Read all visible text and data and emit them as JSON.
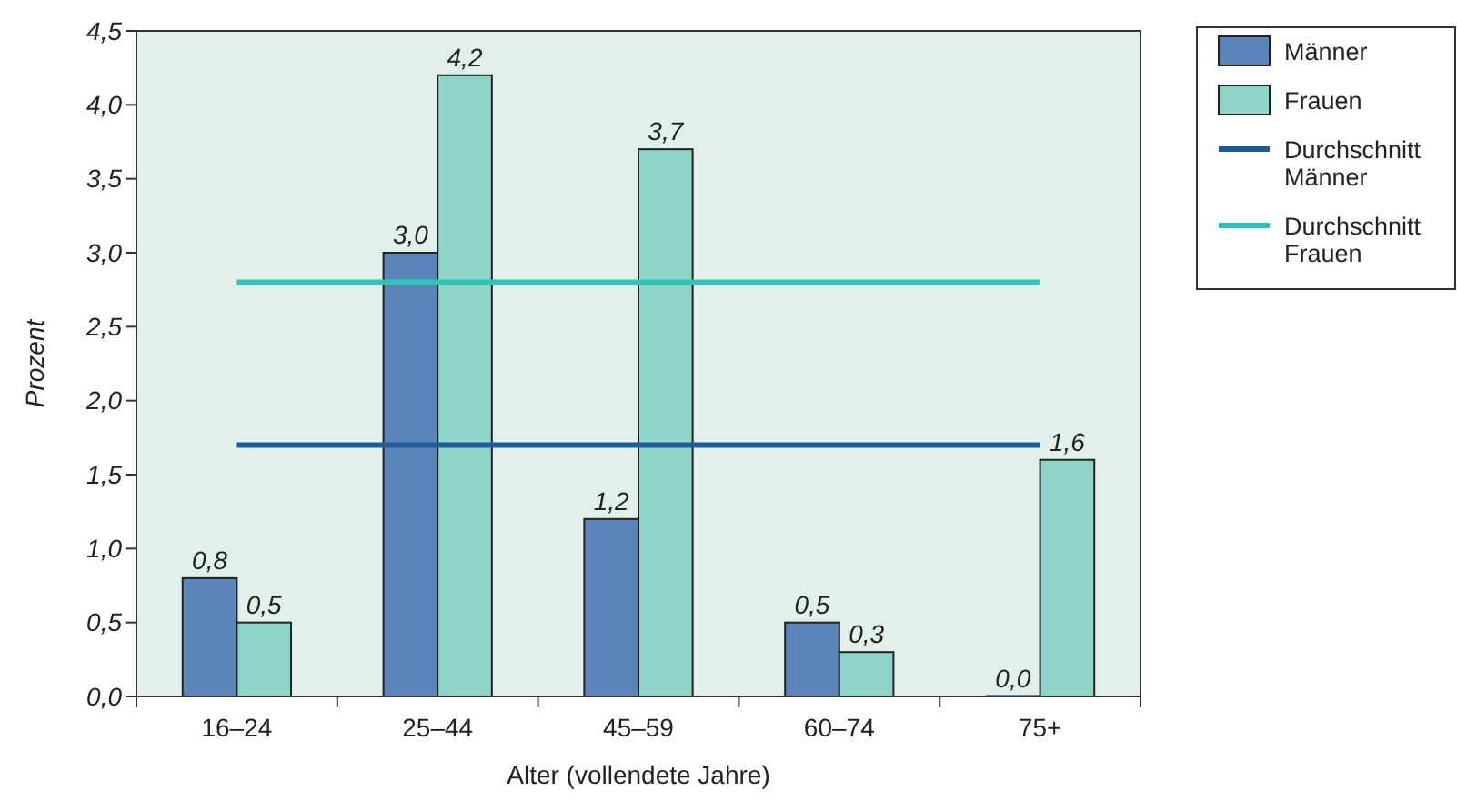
{
  "chart_data": {
    "type": "bar",
    "xlabel": "Alter (vollendete Jahre)",
    "ylabel": "Prozent",
    "categories": [
      "16–24",
      "25–44",
      "45–59",
      "60–74",
      "75+"
    ],
    "series": [
      {
        "name": "Männer",
        "color": "#5b84bb",
        "values": [
          0.8,
          3.0,
          1.2,
          0.5,
          0.0
        ],
        "value_labels": [
          "0,8",
          "3,0",
          "1,2",
          "0,5",
          "0,0"
        ]
      },
      {
        "name": "Frauen",
        "color": "#8fd4c8",
        "values": [
          0.5,
          4.2,
          3.7,
          0.3,
          1.6
        ],
        "value_labels": [
          "0,5",
          "4,2",
          "3,7",
          "0,3",
          "1,6"
        ]
      },
      {
        "name": "Durchschnitt Männer",
        "type": "line",
        "color": "#1f5a99",
        "values": [
          1.7,
          1.7,
          1.7,
          1.7,
          1.7
        ]
      },
      {
        "name": "Durchschnitt Frauen",
        "type": "line",
        "color": "#2ec4b6",
        "values": [
          2.8,
          2.8,
          2.8,
          2.8,
          2.8
        ]
      }
    ],
    "ylim": [
      0,
      4.5
    ],
    "yticks": [
      {
        "value": 0,
        "label": "0,0"
      },
      {
        "value": 0.5,
        "label": "0,5"
      },
      {
        "value": 1,
        "label": "1,0"
      },
      {
        "value": 1.5,
        "label": "1,5"
      },
      {
        "value": 2,
        "label": "2,0"
      },
      {
        "value": 2.5,
        "label": "2,5"
      },
      {
        "value": 3,
        "label": "3,0"
      },
      {
        "value": 3.5,
        "label": "3,5"
      },
      {
        "value": 4,
        "label": "4,0"
      },
      {
        "value": 4.5,
        "label": "4,5"
      }
    ],
    "legend": "top right",
    "grid": false
  }
}
